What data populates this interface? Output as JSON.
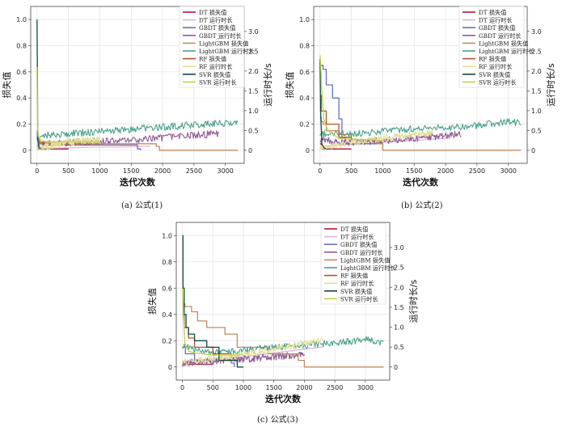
{
  "chart_data": [
    {
      "type": "line",
      "id": "a",
      "caption": "(a) 公式(1)",
      "xlabel": "迭代次数",
      "ylabel_left": "损失值",
      "ylabel_right": "运行时长/s",
      "xlim": [
        -100,
        3300
      ],
      "ylim_left": [
        -0.1,
        1.1
      ],
      "ylim_right": [
        -0.33,
        3.63
      ],
      "xticks": [
        0,
        500,
        1000,
        1500,
        2000,
        2500,
        3000
      ],
      "yticks_left": [
        0,
        0.2,
        0.4,
        0.6,
        0.8,
        1.0
      ],
      "yticks_left_labels": [
        "0",
        "0.2",
        "0.4",
        "0.6",
        "0.8",
        "1.0"
      ],
      "yticks_right": [
        0,
        0.5,
        1.0,
        1.5,
        2.0,
        2.5,
        3.0
      ],
      "yticks_right_labels": [
        "0",
        "0.5",
        "1.0",
        "1.5",
        "2.0",
        "2.5",
        "3.0"
      ],
      "grid": true,
      "legend_position": "top-right",
      "series": [
        {
          "name": "DT 损失值",
          "axis": "left",
          "color": "#b5123a",
          "kind": "step",
          "x": [
            0,
            10,
            500
          ],
          "y": [
            0.03,
            0.01,
            0.01
          ]
        },
        {
          "name": "DT 运行时长",
          "axis": "right",
          "color": "#d8b3dc",
          "kind": "line",
          "x": [
            0,
            100,
            500,
            1000,
            1500,
            1800
          ],
          "y": [
            0.1,
            0.05,
            0.06,
            0.08,
            0.09,
            0.1
          ]
        },
        {
          "name": "GBDT 损失值",
          "axis": "left",
          "color": "#6a6fb8",
          "kind": "step",
          "x": [
            0,
            5,
            30,
            1000,
            1600,
            1650
          ],
          "y": [
            0.15,
            0.08,
            0.05,
            0.04,
            0.01,
            0.0
          ]
        },
        {
          "name": "GBDT 运行时长",
          "axis": "right",
          "color": "#8f5a93",
          "kind": "noisy",
          "x": [
            0,
            200,
            500,
            1000,
            1500,
            2000,
            2500,
            2900
          ],
          "y": [
            0.15,
            0.17,
            0.2,
            0.22,
            0.26,
            0.32,
            0.38,
            0.42
          ]
        },
        {
          "name": "LightGBM 损失值",
          "axis": "left",
          "color": "#c48a60",
          "kind": "step",
          "x": [
            0,
            10,
            50,
            1000,
            1900,
            1950,
            2000,
            3200
          ],
          "y": [
            0.1,
            0.08,
            0.06,
            0.05,
            0.03,
            0.0,
            0.0,
            0.0
          ]
        },
        {
          "name": "LightGBM 运行时长",
          "axis": "right",
          "color": "#4aa08a",
          "kind": "noisy",
          "x": [
            0,
            100,
            500,
            1000,
            1500,
            2000,
            2500,
            3000,
            3200
          ],
          "y": [
            0.35,
            0.38,
            0.42,
            0.47,
            0.53,
            0.58,
            0.65,
            0.68,
            0.68
          ]
        },
        {
          "name": "RF 损失值",
          "axis": "left",
          "color": "#b0522c",
          "kind": "step",
          "x": [
            0,
            20,
            100,
            1000
          ],
          "y": [
            0.08,
            0.06,
            0.04,
            0.04
          ]
        },
        {
          "name": "RF 运行时长",
          "axis": "right",
          "color": "#e3e09a",
          "kind": "noisy",
          "x": [
            0,
            300,
            500,
            800,
            1000
          ],
          "y": [
            0.05,
            0.15,
            0.2,
            0.25,
            0.26
          ]
        },
        {
          "name": "SVR 损失值",
          "axis": "left",
          "color": "#114a3e",
          "kind": "line",
          "x": [
            0,
            8,
            12,
            30,
            60
          ],
          "y": [
            1.0,
            0.45,
            0.08,
            0.02,
            0.01
          ]
        },
        {
          "name": "SVR 运行时长",
          "axis": "right",
          "color": "#c2d24a",
          "kind": "line",
          "x": [
            0,
            5,
            10,
            20,
            60,
            150,
            500,
            1000
          ],
          "y": [
            2.1,
            1.3,
            0.6,
            0.35,
            0.25,
            0.22,
            0.22,
            0.22
          ]
        }
      ]
    },
    {
      "type": "line",
      "id": "b",
      "caption": "(b) 公式(2)",
      "xlabel": "迭代次数",
      "ylabel_left": "损失值",
      "ylabel_right": "运行时长/s",
      "xlim": [
        -100,
        3300
      ],
      "ylim_left": [
        -0.1,
        1.1
      ],
      "ylim_right": [
        -0.33,
        3.63
      ],
      "xticks": [
        0,
        500,
        1000,
        1500,
        2000,
        2500,
        3000
      ],
      "yticks_left": [
        0,
        0.2,
        0.4,
        0.6,
        0.8,
        1.0
      ],
      "yticks_left_labels": [
        "0",
        "0.2",
        "0.4",
        "0.6",
        "0.8",
        "1.0"
      ],
      "yticks_right": [
        0,
        0.5,
        1.0,
        1.5,
        2.0,
        2.5,
        3.0
      ],
      "yticks_right_labels": [
        "0",
        "0.5",
        "1.0",
        "1.5",
        "2.0",
        "2.5",
        "3.0"
      ],
      "grid": true,
      "legend_position": "top-right",
      "series": [
        {
          "name": "DT 损失值",
          "axis": "left",
          "color": "#b5123a",
          "kind": "step",
          "x": [
            0,
            20,
            500
          ],
          "y": [
            0.05,
            0.01,
            0.01
          ]
        },
        {
          "name": "DT 运行时长",
          "axis": "right",
          "color": "#d8b3dc",
          "kind": "line",
          "x": [
            0,
            500,
            1000,
            1500,
            2000
          ],
          "y": [
            0.1,
            0.15,
            0.2,
            0.25,
            0.3
          ]
        },
        {
          "name": "GBDT 损失值",
          "axis": "left",
          "color": "#6a6fb8",
          "kind": "step",
          "x": [
            0,
            50,
            100,
            200,
            300,
            350,
            400,
            1000
          ],
          "y": [
            0.65,
            0.62,
            0.5,
            0.4,
            0.24,
            0.1,
            0.05,
            0.0
          ]
        },
        {
          "name": "GBDT 运行时长",
          "axis": "right",
          "color": "#8f5a93",
          "kind": "noisy",
          "x": [
            0,
            500,
            1000,
            1500,
            2000,
            2250
          ],
          "y": [
            0.25,
            0.2,
            0.25,
            0.3,
            0.38,
            0.42
          ]
        },
        {
          "name": "LightGBM 损失值",
          "axis": "left",
          "color": "#c48a60",
          "kind": "step",
          "x": [
            0,
            20,
            50,
            100,
            300,
            500,
            900,
            1000,
            3200
          ],
          "y": [
            0.25,
            0.22,
            0.2,
            0.15,
            0.12,
            0.08,
            0.05,
            0.0,
            0.0
          ]
        },
        {
          "name": "LightGBM 运行时长",
          "axis": "right",
          "color": "#4aa08a",
          "kind": "noisy",
          "x": [
            0,
            500,
            1000,
            1500,
            2000,
            2500,
            3000,
            3200
          ],
          "y": [
            0.4,
            0.42,
            0.48,
            0.55,
            0.58,
            0.62,
            0.72,
            0.7
          ]
        },
        {
          "name": "RF 损失值",
          "axis": "left",
          "color": "#b0522c",
          "kind": "step",
          "x": [
            0,
            20,
            100,
            300,
            500
          ],
          "y": [
            0.42,
            0.3,
            0.2,
            0.1,
            0.08
          ]
        },
        {
          "name": "RF 运行时长",
          "axis": "right",
          "color": "#e3e09a",
          "kind": "noisy",
          "x": [
            0,
            500,
            1000,
            1500,
            1800
          ],
          "y": [
            0.05,
            0.2,
            0.3,
            0.4,
            0.45
          ]
        },
        {
          "name": "SVR 损失值",
          "axis": "left",
          "color": "#114a3e",
          "kind": "line",
          "x": [
            0,
            10,
            30,
            60,
            100
          ],
          "y": [
            0.7,
            0.3,
            0.05,
            0.02,
            0.01
          ]
        },
        {
          "name": "SVR 运行时长",
          "axis": "right",
          "color": "#c2d24a",
          "kind": "line",
          "x": [
            0,
            10,
            30,
            60,
            120,
            300,
            1000
          ],
          "y": [
            2.4,
            2.2,
            1.5,
            0.8,
            0.5,
            0.3,
            0.25
          ]
        }
      ]
    },
    {
      "type": "line",
      "id": "c",
      "caption": "(c) 公式(3)",
      "xlabel": "迭代次数",
      "ylabel_left": "损失值",
      "ylabel_right": "运行时长/s",
      "xlim": [
        -100,
        3400
      ],
      "ylim_left": [
        -0.1,
        1.1
      ],
      "ylim_right": [
        -0.33,
        3.63
      ],
      "xticks": [
        0,
        500,
        1000,
        1500,
        2000,
        2500,
        3000
      ],
      "yticks_left": [
        0,
        0.2,
        0.4,
        0.6,
        0.8,
        1.0
      ],
      "yticks_left_labels": [
        "0",
        "0.2",
        "0.4",
        "0.6",
        "0.8",
        "1.0"
      ],
      "yticks_right": [
        0,
        0.5,
        1.0,
        1.5,
        2.0,
        2.5,
        3.0
      ],
      "yticks_right_labels": [
        "0",
        "0.5",
        "1.0",
        "1.5",
        "2.0",
        "2.5",
        "3.0"
      ],
      "grid": true,
      "legend_position": "top-right",
      "series": [
        {
          "name": "DT 损失值",
          "axis": "left",
          "color": "#b5123a",
          "kind": "step",
          "x": [
            0,
            20,
            500
          ],
          "y": [
            0.04,
            0.02,
            0.02
          ]
        },
        {
          "name": "DT 运行时长",
          "axis": "right",
          "color": "#d8b3dc",
          "kind": "line",
          "x": [
            0,
            500,
            1000,
            1500,
            2000,
            2300
          ],
          "y": [
            0.15,
            0.2,
            0.25,
            0.35,
            0.45,
            0.5
          ]
        },
        {
          "name": "GBDT 损失值",
          "axis": "left",
          "color": "#6a6fb8",
          "kind": "step",
          "x": [
            0,
            50,
            200,
            800,
            850
          ],
          "y": [
            0.15,
            0.1,
            0.05,
            0.03,
            0.0
          ]
        },
        {
          "name": "GBDT 运行时长",
          "axis": "right",
          "color": "#8f5a93",
          "kind": "noisy",
          "x": [
            0,
            500,
            1000,
            1500,
            2000
          ],
          "y": [
            0.1,
            0.15,
            0.2,
            0.26,
            0.3
          ]
        },
        {
          "name": "LightGBM 损失值",
          "axis": "left",
          "color": "#c48a60",
          "kind": "step",
          "x": [
            0,
            40,
            150,
            250,
            400,
            700,
            900,
            1400,
            1900,
            2000,
            3300
          ],
          "y": [
            0.48,
            0.46,
            0.42,
            0.35,
            0.3,
            0.25,
            0.15,
            0.1,
            0.05,
            0.0,
            0.0
          ]
        },
        {
          "name": "LightGBM 运行时长",
          "axis": "right",
          "color": "#4aa08a",
          "kind": "noisy",
          "x": [
            0,
            500,
            1000,
            1500,
            2000,
            2500,
            3000,
            3300
          ],
          "y": [
            0.5,
            0.35,
            0.4,
            0.5,
            0.55,
            0.62,
            0.68,
            0.62
          ]
        },
        {
          "name": "RF 损失值",
          "axis": "left",
          "color": "#b0522c",
          "kind": "step",
          "x": [
            0,
            30,
            100,
            200,
            500,
            800,
            900
          ],
          "y": [
            0.4,
            0.3,
            0.22,
            0.15,
            0.1,
            0.05,
            0.02
          ]
        },
        {
          "name": "RF 运行时长",
          "axis": "right",
          "color": "#e3e09a",
          "kind": "noisy",
          "x": [
            0,
            500,
            1000,
            1500,
            2000,
            2300
          ],
          "y": [
            0.1,
            0.2,
            0.3,
            0.45,
            0.6,
            0.65
          ]
        },
        {
          "name": "SVR 损失值",
          "axis": "left",
          "color": "#114a3e",
          "kind": "step",
          "x": [
            0,
            10,
            30,
            60,
            100,
            200,
            400,
            600,
            900,
            1000
          ],
          "y": [
            1.0,
            0.6,
            0.4,
            0.3,
            0.25,
            0.2,
            0.15,
            0.05,
            0.0,
            0.0
          ]
        },
        {
          "name": "SVR 运行时长",
          "axis": "right",
          "color": "#c2d24a",
          "kind": "line",
          "x": [
            0,
            10,
            40,
            100,
            200,
            500,
            1000
          ],
          "y": [
            2.0,
            1.5,
            0.6,
            0.4,
            0.35,
            0.3,
            0.3
          ]
        }
      ]
    }
  ]
}
